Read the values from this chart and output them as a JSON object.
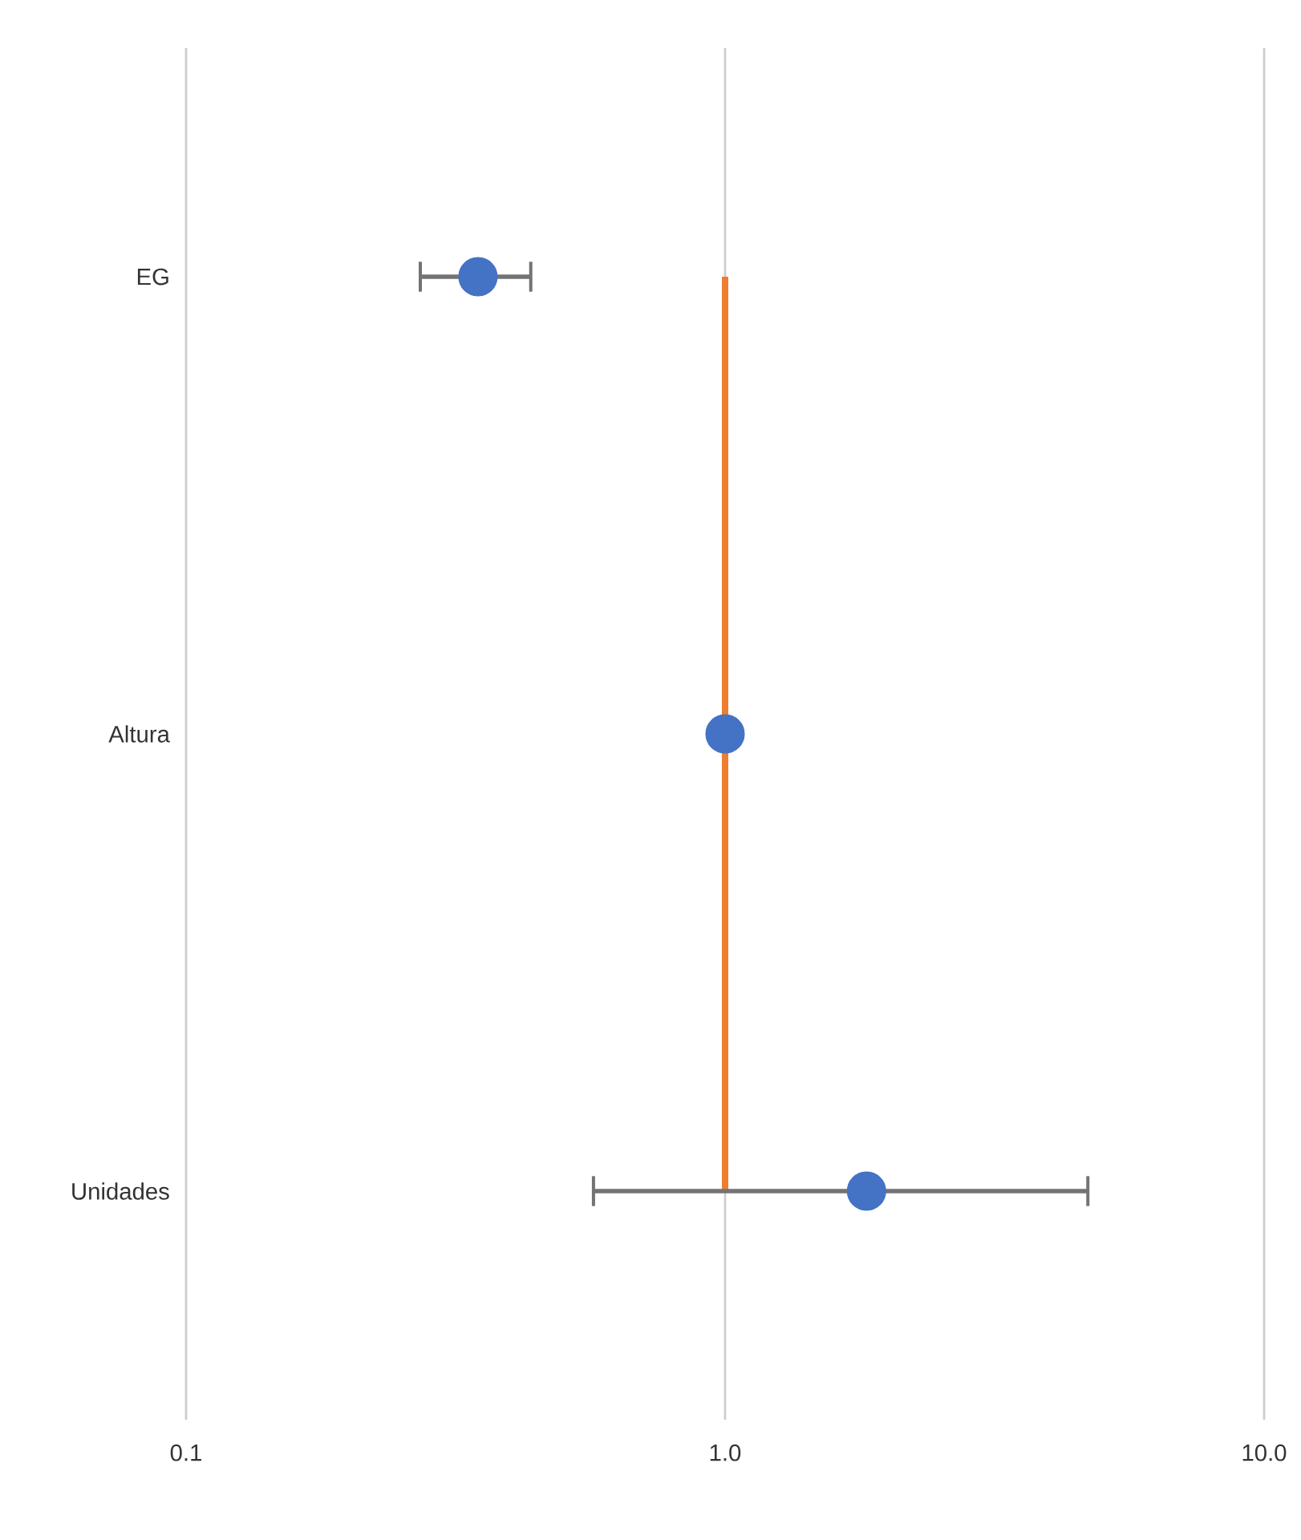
{
  "chart_data": {
    "type": "scatter",
    "orientation": "horizontal",
    "categories": [
      "EG",
      "Altura",
      "Unidades"
    ],
    "values": [
      0.348,
      1.0,
      1.83
    ],
    "errors": [
      [
        0.272,
        0.436
      ],
      null,
      [
        0.57,
        4.71
      ]
    ],
    "color": "#4472c4",
    "marker": "circle",
    "log": "x",
    "grid": "x",
    "xlim": [
      0.1,
      10
    ],
    "xticks": [
      {
        "value": 0.1,
        "label": "0.1"
      },
      {
        "value": 1,
        "label": "1.0"
      },
      {
        "value": 10,
        "label": "10.0"
      }
    ],
    "ref_lines": [
      {
        "axis": "x",
        "value": 1,
        "color": "#ed7d31"
      }
    ]
  }
}
